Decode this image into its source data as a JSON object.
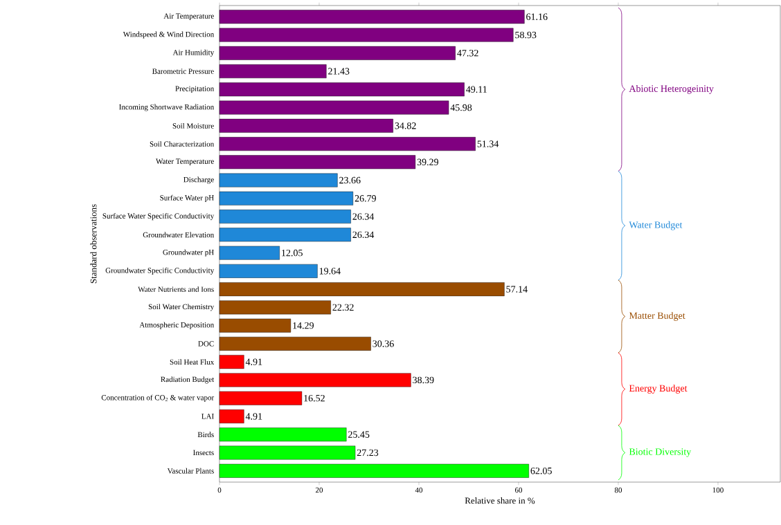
{
  "chart_data": {
    "type": "bar",
    "orientation": "horizontal",
    "xlabel": "Relative share in %",
    "ylabel": "Standard observations",
    "categories": [
      "Air Temperature",
      "Windspeed & Wind Direction",
      "Air Humidity",
      "Barometric Pressure",
      "Precipitation",
      "Incoming Shortwave Radiation",
      "Soil Moisture",
      "Soil Characterization",
      "Water Temperature",
      "Discharge",
      "Surface Water pH",
      "Surface Water Specific Conductivity",
      "Groundwater Elevation",
      "Groundwater pH",
      "Groundwater Specific Conductivity",
      "Water Nutrients and Ions",
      "Soil Water Chemistry",
      "Atmospheric Deposition",
      "DOC",
      "Soil Heat Flux",
      "Radiation Budget",
      "Concentration of CO$_{2}$ & water vapor",
      "LAI",
      "Birds",
      "Insects",
      "Vascular Plants"
    ],
    "values": [
      61.16,
      58.93,
      47.32,
      21.43,
      49.11,
      45.98,
      34.82,
      51.34,
      39.29,
      23.66,
      26.79,
      26.34,
      26.34,
      12.05,
      19.64,
      57.14,
      22.32,
      14.29,
      30.36,
      4.91,
      38.39,
      16.52,
      4.91,
      25.45,
      27.23,
      62.05
    ],
    "colors": [
      "#800080",
      "#800080",
      "#800080",
      "#800080",
      "#800080",
      "#800080",
      "#800080",
      "#800080",
      "#800080",
      "#1f88d8",
      "#1f88d8",
      "#1f88d8",
      "#1f88d8",
      "#1f88d8",
      "#1f88d8",
      "#994c00",
      "#994c00",
      "#994c00",
      "#994c00",
      "#ff0000",
      "#ff0000",
      "#ff0000",
      "#ff0000",
      "#00ff00",
      "#00ff00",
      "#00ff00"
    ],
    "data_labels": true,
    "xlim": [
      0,
      112.5
    ],
    "xticks": [
      0,
      20,
      40,
      60,
      80,
      100
    ],
    "annotations": [
      "Abiotic Heterogeinity",
      "Water Budget",
      "Matter Budget",
      "Energy Budget",
      "Biotic Diversity"
    ]
  }
}
